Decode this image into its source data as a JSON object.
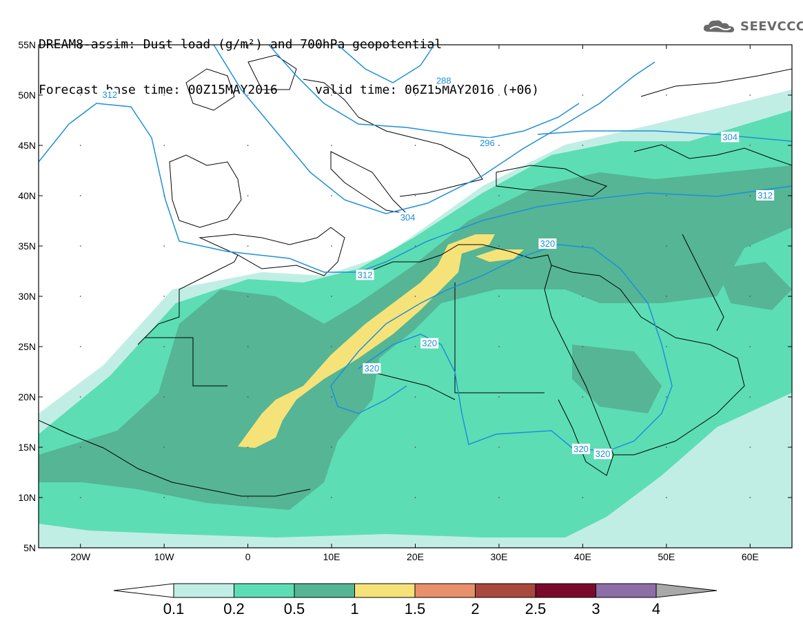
{
  "header": {
    "title_line1": "DREAM8-assim: Dust load (g/m²) and 700hPa geopotential",
    "title_line2": "Forecast base time: 00Z15MAY2016     valid time: 06Z15MAY2016 (+06)"
  },
  "logo": {
    "text": "SEEVCCC",
    "icon": "cloud-logo-icon"
  },
  "map": {
    "lat_labels": [
      "55N",
      "50N",
      "45N",
      "40N",
      "35N",
      "30N",
      "25N",
      "20N",
      "15N",
      "10N",
      "5N"
    ],
    "lon_labels": [
      "20W",
      "10W",
      "0",
      "10E",
      "20E",
      "30E",
      "40E",
      "50E",
      "60E"
    ],
    "contour_labels": [
      {
        "text": "312",
        "lon": -16.5,
        "lat": 50.0
      },
      {
        "text": "288",
        "lon": 23.4,
        "lat": 51.4
      },
      {
        "text": "296",
        "lon": 28.6,
        "lat": 45.2
      },
      {
        "text": "304",
        "lon": 57.6,
        "lat": 45.8
      },
      {
        "text": "312",
        "lon": 61.8,
        "lat": 40.0
      },
      {
        "text": "304",
        "lon": 19.1,
        "lat": 37.8
      },
      {
        "text": "312",
        "lon": 14.0,
        "lat": 32.1
      },
      {
        "text": "320",
        "lon": 35.8,
        "lat": 35.2
      },
      {
        "text": "320",
        "lon": 21.7,
        "lat": 25.3
      },
      {
        "text": "320",
        "lon": 14.8,
        "lat": 22.8
      },
      {
        "text": "320",
        "lon": 39.8,
        "lat": 14.8
      },
      {
        "text": "320",
        "lon": 42.4,
        "lat": 14.3
      }
    ],
    "colors": {
      "very_light": "#c0eee5",
      "light": "#5dddb4",
      "medium": "#55b595",
      "yellow": "#f5e37a",
      "contour": "#1e8fd8"
    }
  },
  "colorbar": {
    "labels": [
      "0.1",
      "0.2",
      "0.5",
      "1",
      "1.5",
      "2",
      "2.5",
      "3",
      "4"
    ],
    "colors": [
      "#ffffff",
      "#c0eee5",
      "#5dddb4",
      "#55b595",
      "#f5e37a",
      "#e8906a",
      "#a9493d",
      "#7a0a2b",
      "#8c6da6",
      "#a9a9a9"
    ]
  }
}
